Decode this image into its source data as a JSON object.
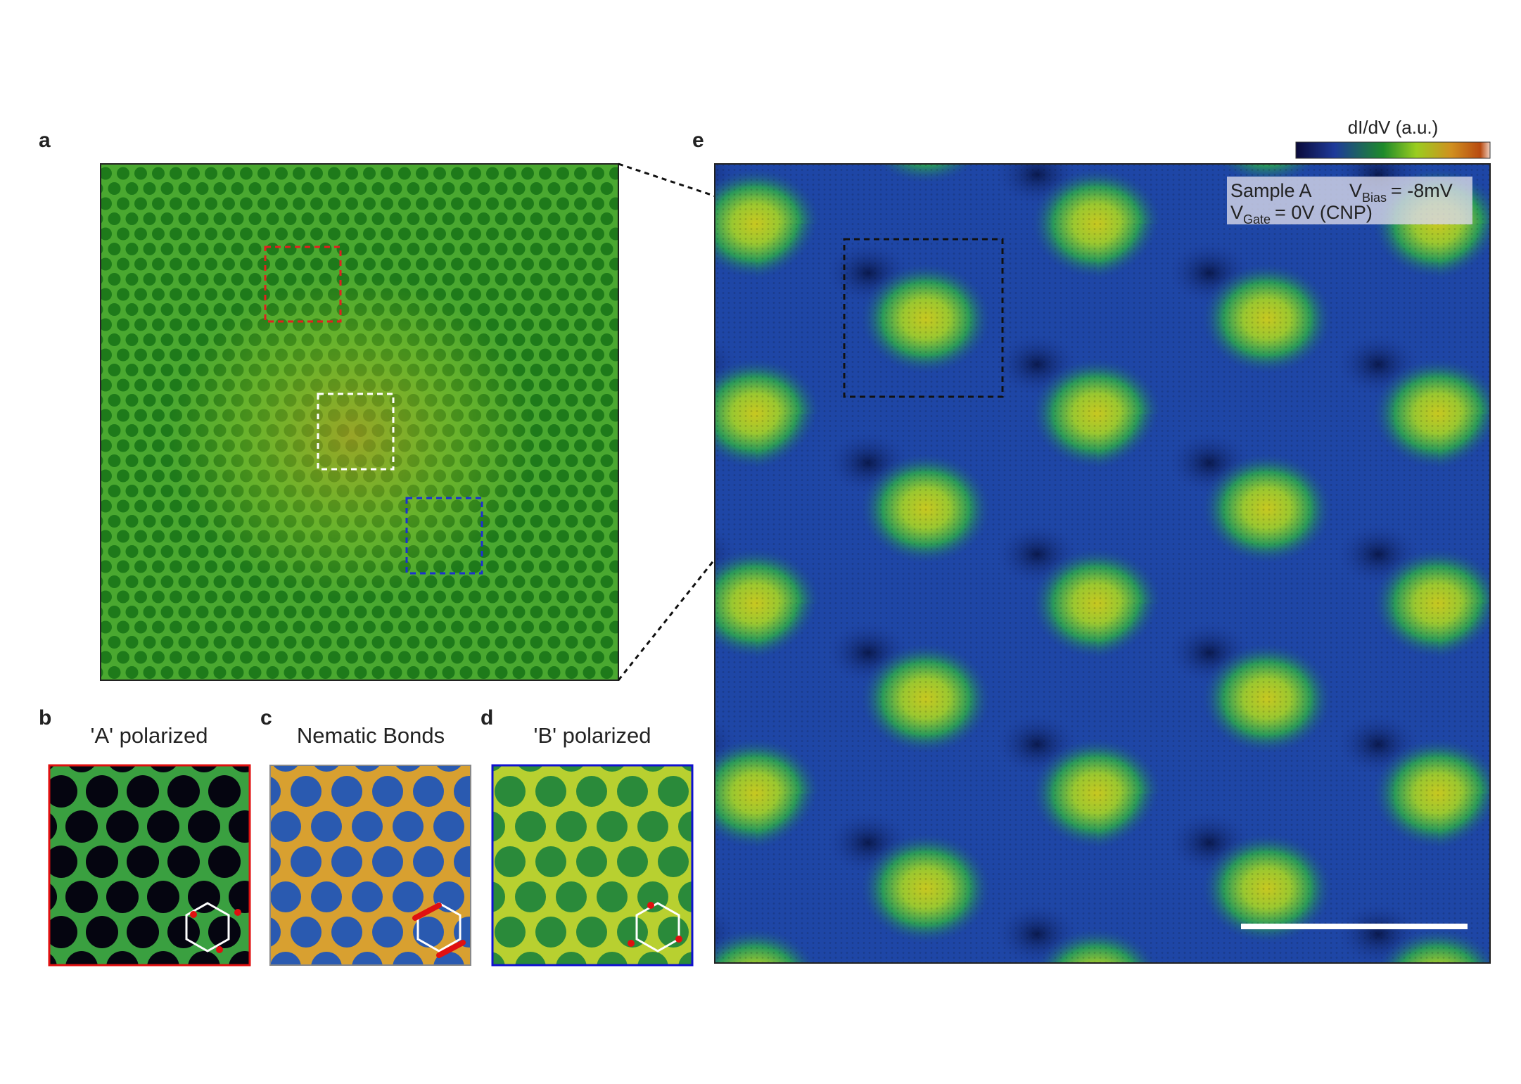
{
  "labels": {
    "a": "a",
    "b": "b",
    "c": "c",
    "d": "d",
    "e": "e"
  },
  "panels": [
    {
      "title": "'A' polarized"
    },
    {
      "title": "Nematic Bonds"
    },
    {
      "title": "'B' polarized"
    }
  ],
  "colorbar": {
    "label": "dI/dV (a.u.)"
  },
  "annotation": {
    "sample": "Sample A",
    "bias_symbol": "V",
    "bias_subscript": "Bias",
    "bias_value": "= -8mV",
    "gate_symbol": "V",
    "gate_subscript": "Gate",
    "gate_value": "= 0V (CNP)"
  }
}
